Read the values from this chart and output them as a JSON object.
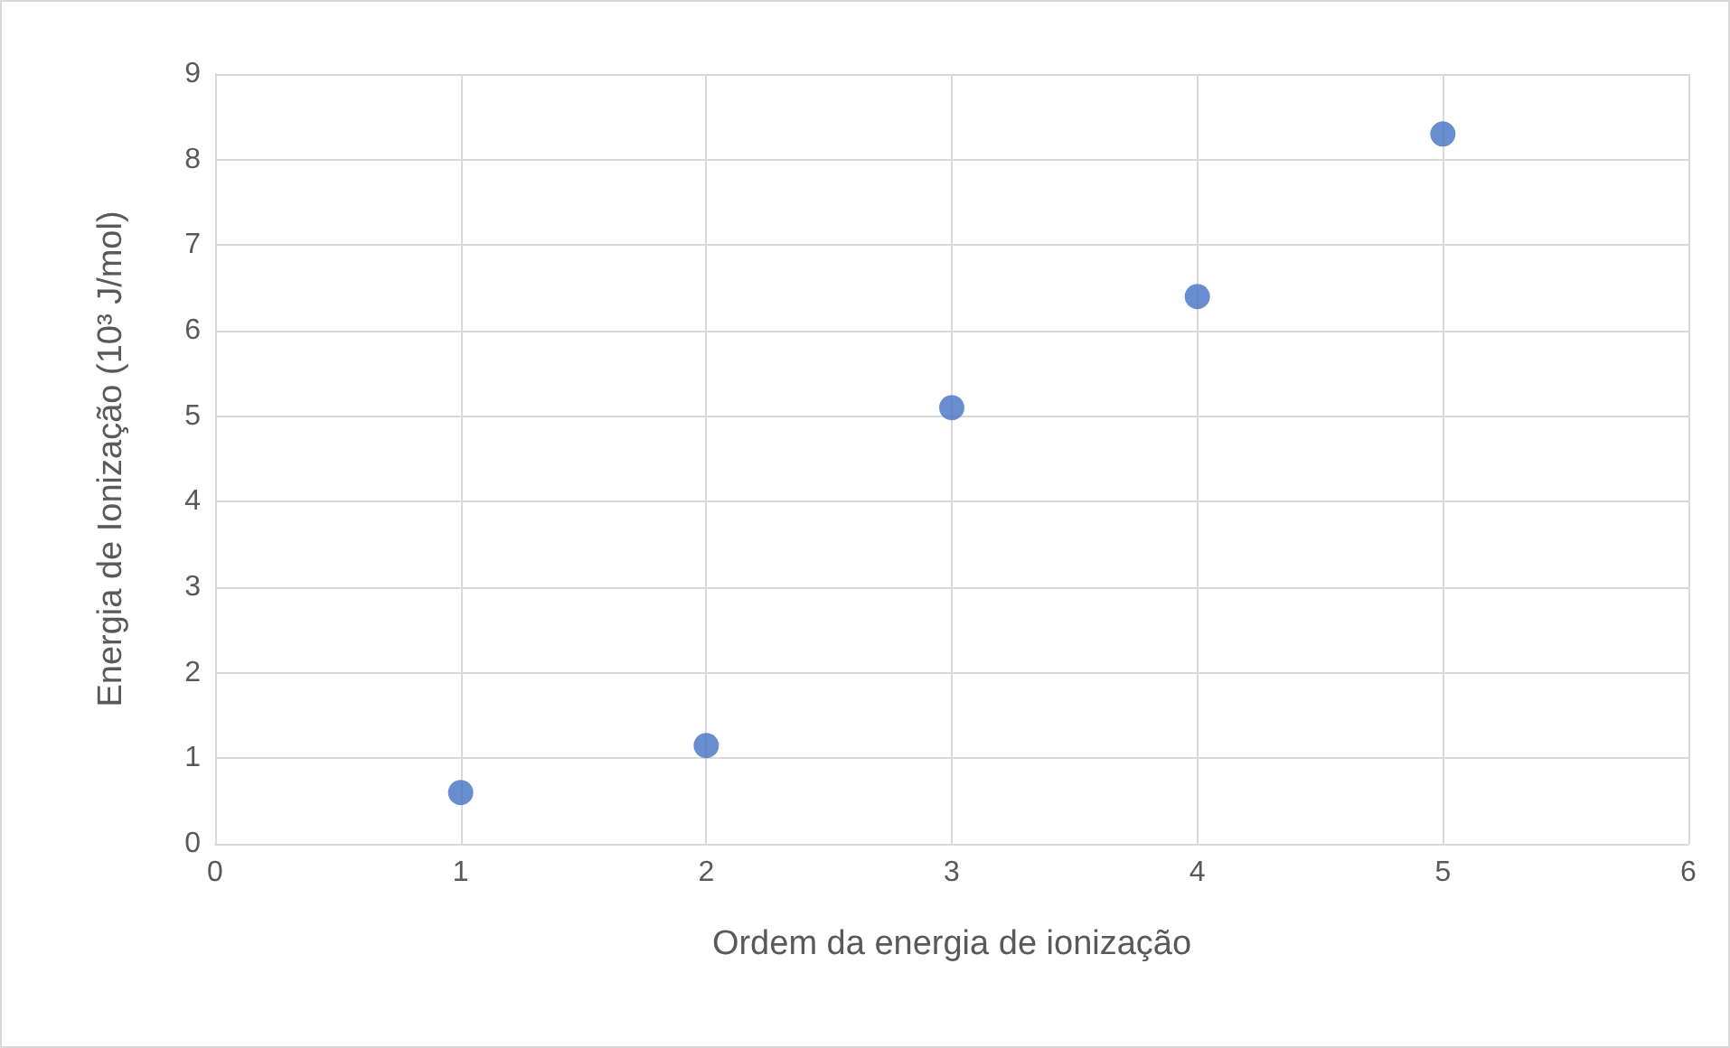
{
  "chart_data": {
    "type": "scatter",
    "xlabel": "Ordem da energia de ionização",
    "ylabel": "Energia de Ionização (10³ J/mol)",
    "x": [
      1,
      2,
      3,
      4,
      5
    ],
    "series": [
      {
        "color": "#4472c4",
        "values": [
          0.6,
          1.15,
          5.1,
          6.4,
          8.3
        ]
      }
    ],
    "xlim": [
      0,
      6
    ],
    "xticks": [
      0,
      1,
      2,
      3,
      4,
      5,
      6
    ],
    "ylim": [
      0,
      9
    ],
    "yticks": [
      0,
      1,
      2,
      3,
      4,
      5,
      6,
      7,
      8,
      9
    ],
    "grid": true,
    "marker": "circle"
  }
}
